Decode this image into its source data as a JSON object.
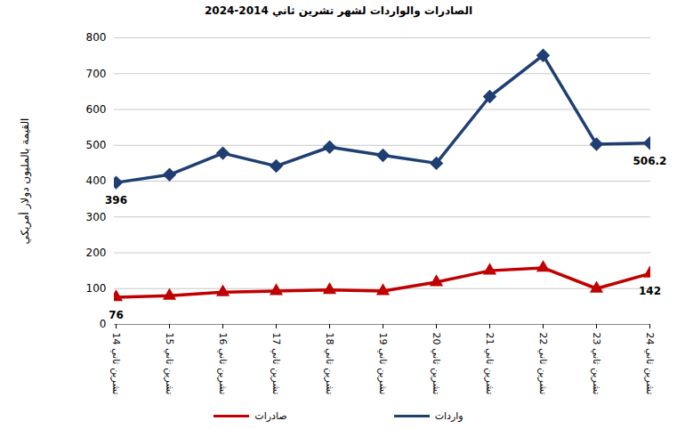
{
  "chart_data": {
    "type": "line",
    "title": "الصادرات والواردات لشهر تشرين ثاني 2014-2024",
    "y_label": "القيمة بالمليون دولار أمريكي",
    "categories": [
      "تشرين ثاني 14",
      "تشرين ثاني 15",
      "تشرين ثاني 16",
      "تشرين ثاني 17",
      "تشرين ثاني 18",
      "تشرين ثاني 19",
      "تشرين ثاني 20",
      "تشرين ثاني 21",
      "تشرين ثاني 22",
      "تشرين ثاني 23",
      "تشرين ثاني 24"
    ],
    "series": [
      {
        "name": "واردات",
        "color": "#1f3f73",
        "marker": "diamond",
        "values": [
          396,
          418,
          478,
          442,
          495,
          472,
          450,
          636,
          751,
          503,
          506.2
        ],
        "value_labels": [
          "396",
          null,
          null,
          null,
          null,
          null,
          null,
          null,
          null,
          null,
          "506.2"
        ]
      },
      {
        "name": "صادرات",
        "color": "#c00000",
        "marker": "triangle",
        "values": [
          76,
          80,
          90,
          93,
          96,
          93,
          118,
          150,
          158,
          100,
          142
        ],
        "value_labels": [
          "76",
          null,
          null,
          null,
          null,
          null,
          null,
          null,
          null,
          null,
          "142"
        ]
      }
    ],
    "ylim": [
      0,
      800
    ],
    "yticks": [
      0,
      100,
      200,
      300,
      400,
      500,
      600,
      700,
      800
    ],
    "grid": true,
    "legend": "bottom",
    "data_labels": true
  }
}
